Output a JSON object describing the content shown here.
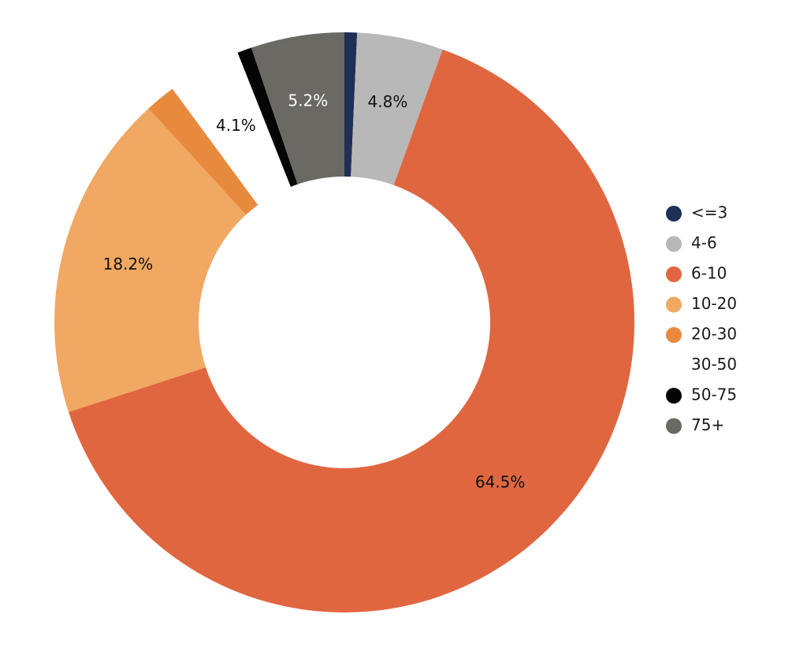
{
  "chart_data": {
    "type": "pie",
    "title": "",
    "legend_placement": "right",
    "slices": [
      {
        "label": "<=3",
        "value": 0.7,
        "color": "#1f2f55",
        "value_label": ""
      },
      {
        "label": "4-6",
        "value": 4.8,
        "color": "#b8b8b8",
        "value_label": "4.8%"
      },
      {
        "label": "6-10",
        "value": 64.5,
        "color": "#e06640",
        "value_label": "64.5%"
      },
      {
        "label": "10-20",
        "value": 18.2,
        "color": "#f0a862",
        "value_label": "18.2%"
      },
      {
        "label": "20-30",
        "value": 1.7,
        "color": "#e88a3e",
        "value_label": ""
      },
      {
        "label": "30-50",
        "value": 4.1,
        "color": "#ffffff",
        "value_label": "4.1%"
      },
      {
        "label": "50-75",
        "value": 0.8,
        "color": "#050505",
        "value_label": ""
      },
      {
        "label": "75+",
        "value": 5.2,
        "color": "#6a6964",
        "value_label": "5.2%"
      }
    ]
  }
}
